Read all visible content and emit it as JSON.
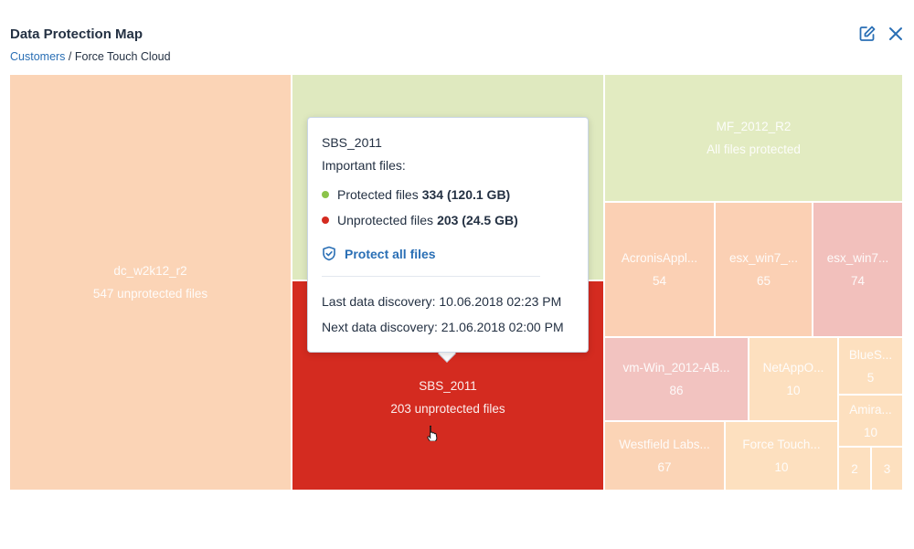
{
  "header": {
    "title": "Data Protection Map",
    "breadcrumb_link": "Customers",
    "breadcrumb_sep": " / ",
    "breadcrumb_current": "Force Touch Cloud",
    "edit_icon": "edit-icon",
    "close_icon": "close-icon"
  },
  "treemap": {
    "tiles": [
      {
        "name": "dc_w2k12_r2",
        "value": "547 unprotected files",
        "color": "#fbd4b6"
      },
      {
        "name": "",
        "value": "",
        "color": "#dfe9bf"
      },
      {
        "name": "SBS_2011",
        "value": "203 unprotected files",
        "color": "#d42b20"
      },
      {
        "name": "MF_2012_R2",
        "value": "All files protected",
        "color": "#e2ebc1"
      },
      {
        "name": "AcronisAppl...",
        "value": "54",
        "color": "#fbd0b4"
      },
      {
        "name": "esx_win7_...",
        "value": "65",
        "color": "#fbd0b4"
      },
      {
        "name": "esx_win7...",
        "value": "74",
        "color": "#f2c0bc"
      },
      {
        "name": "vm-Win_2012-AB...",
        "value": "86",
        "color": "#f2c3c0"
      },
      {
        "name": "NetAppO...",
        "value": "10",
        "color": "#fde0bf"
      },
      {
        "name": "BlueS...",
        "value": "5",
        "color": "#fde0bf"
      },
      {
        "name": "Amira...",
        "value": "10",
        "color": "#fde0bf"
      },
      {
        "name": "Westfield Labs...",
        "value": "67",
        "color": "#fbd4b6"
      },
      {
        "name": "Force Touch...",
        "value": "10",
        "color": "#fde0bf"
      },
      {
        "name": "2",
        "value": "",
        "color": "#fde0bf"
      },
      {
        "name": "3",
        "value": "",
        "color": "#fde0bf"
      }
    ]
  },
  "tooltip": {
    "title": "SBS_2011",
    "subtitle": "Important files:",
    "protected_label": "Protected files",
    "protected_value": "334 (120.1 GB)",
    "protected_color": "#8bc34a",
    "unprotected_label": "Unprotected files",
    "unprotected_value": "203 (24.5 GB)",
    "unprotected_color": "#d42b20",
    "action_label": "Protect all files",
    "action_icon": "shield-check-icon",
    "last_discovery": "Last data discovery: 10.06.2018 02:23 PM",
    "next_discovery": "Next data discovery: 21.06.2018 02:00 PM"
  },
  "colors": {
    "accent": "#2a6fb5",
    "critical": "#d42b20",
    "protected": "#dfe9bf"
  }
}
